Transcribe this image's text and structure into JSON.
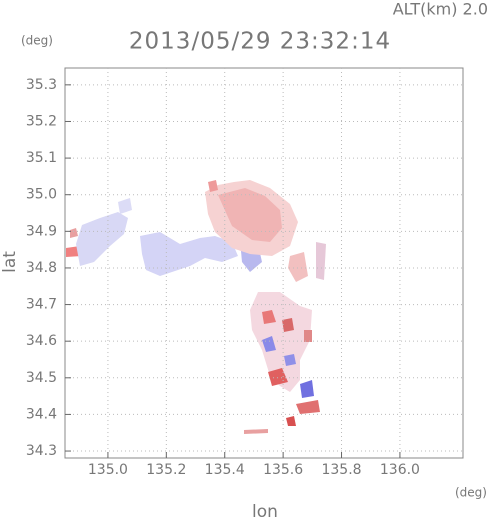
{
  "chart_data": {
    "type": "map",
    "title": "2013/05/29 23:32:14",
    "subtitle": "ALT(km) 2.0",
    "x_label": "lon",
    "y_label": "lat",
    "x_unit": "(deg)",
    "y_unit": "(deg)",
    "xlim": [
      134.853,
      136.216
    ],
    "ylim": [
      34.281,
      35.346
    ],
    "xticks": [
      {
        "value": 135.0,
        "label": "135.0"
      },
      {
        "value": 135.2,
        "label": "135.2"
      },
      {
        "value": 135.4,
        "label": "135.4"
      },
      {
        "value": 135.6,
        "label": "135.6"
      },
      {
        "value": 135.8,
        "label": "135.8"
      },
      {
        "value": 136.0,
        "label": "136.0"
      }
    ],
    "yticks": [
      {
        "value": 34.3,
        "label": "34.3"
      },
      {
        "value": 34.4,
        "label": "34.4"
      },
      {
        "value": 34.5,
        "label": "34.5"
      },
      {
        "value": 34.6,
        "label": "34.6"
      },
      {
        "value": 34.7,
        "label": "34.7"
      },
      {
        "value": 34.8,
        "label": "34.8"
      },
      {
        "value": 34.9,
        "label": "34.9"
      },
      {
        "value": 35.0,
        "label": "35.0"
      },
      {
        "value": 35.1,
        "label": "35.1"
      },
      {
        "value": 35.2,
        "label": "35.2"
      },
      {
        "value": 35.3,
        "label": "35.3"
      }
    ],
    "grid": true
  }
}
